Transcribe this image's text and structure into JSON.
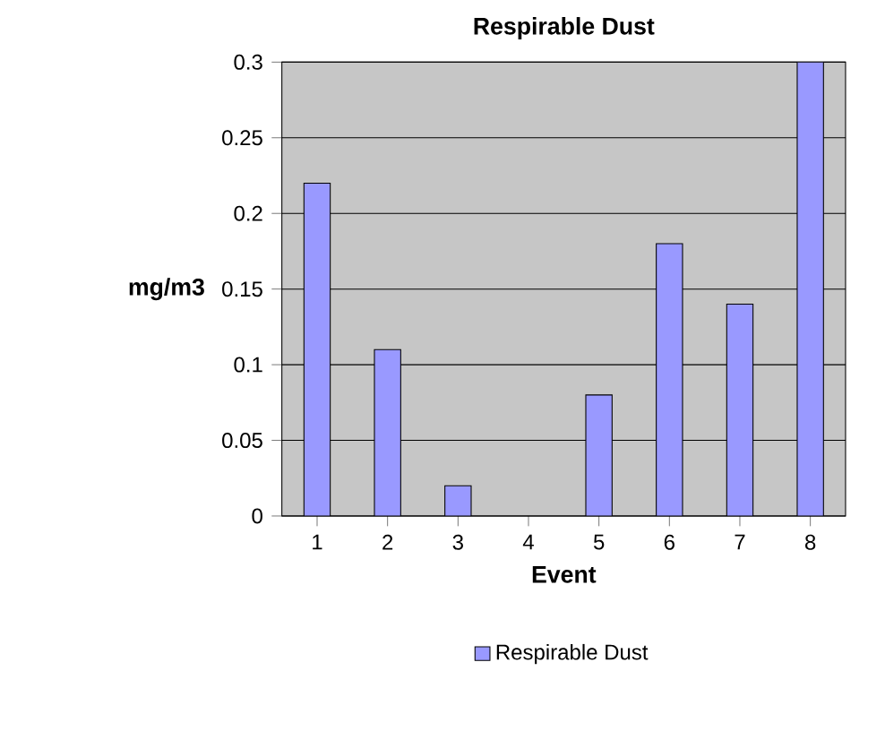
{
  "chart_data": {
    "type": "bar",
    "title": "Respirable Dust",
    "xlabel": "Event",
    "ylabel": "mg/m3",
    "categories": [
      "1",
      "2",
      "3",
      "4",
      "5",
      "6",
      "7",
      "8"
    ],
    "series": [
      {
        "name": "Respirable Dust",
        "color": "#9999ff",
        "values": [
          0.22,
          0.11,
          0.02,
          null,
          0.08,
          0.18,
          0.14,
          0.3
        ]
      }
    ],
    "ylim": [
      0,
      0.3
    ],
    "yticks": [
      0,
      0.05,
      0.1,
      0.15,
      0.2,
      0.25,
      0.3
    ],
    "grid": "y",
    "legend": "bottom"
  }
}
